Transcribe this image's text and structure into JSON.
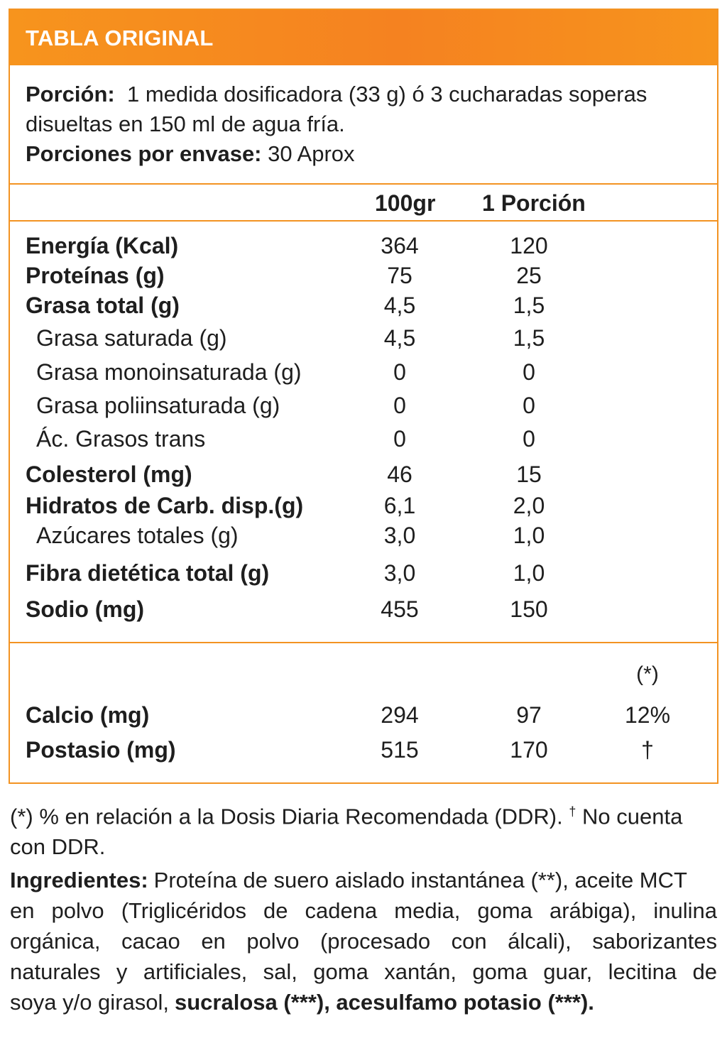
{
  "header": {
    "title": "TABLA ORIGINAL"
  },
  "serving": {
    "portion_label": "Porción:",
    "portion_text_1": "1 medida dosificadora (33 g) ó 3 cucharadas soperas",
    "portion_text_2": "disueltas en 150 ml de agua fría.",
    "per_container_label": "Porciones por envase:",
    "per_container_value": "30 Aprox"
  },
  "columns": {
    "per_100": "100gr",
    "per_portion": "1 Porción",
    "pct": "(*)"
  },
  "nutrients": [
    {
      "label": "Energía (Kcal)",
      "per_100": "364",
      "per_portion": "120"
    },
    {
      "label": "Proteínas (g)",
      "per_100": "75",
      "per_portion": "25"
    },
    {
      "label": "Grasa total (g)",
      "per_100": "4,5",
      "per_portion": "1,5"
    },
    {
      "label": "Grasa saturada (g)",
      "per_100": "4,5",
      "per_portion": "1,5"
    },
    {
      "label": "Grasa monoinsaturada (g)",
      "per_100": "0",
      "per_portion": "0"
    },
    {
      "label": "Grasa poliinsaturada (g)",
      "per_100": "0",
      "per_portion": "0"
    },
    {
      "label": "Ác. Grasos trans",
      "per_100": "0",
      "per_portion": "0"
    },
    {
      "label": "Colesterol (mg)",
      "per_100": "46",
      "per_portion": "15"
    },
    {
      "label": "Hidratos de Carb. disp.(g)",
      "per_100": "6,1",
      "per_portion": "2,0"
    },
    {
      "label": "Azúcares totales (g)",
      "per_100": "3,0",
      "per_portion": "1,0"
    },
    {
      "label": "Fibra dietética total (g)",
      "per_100": "3,0",
      "per_portion": "1,0"
    },
    {
      "label": "Sodio (mg)",
      "per_100": "455",
      "per_portion": "150"
    }
  ],
  "minerals": [
    {
      "label": "Calcio (mg)",
      "per_100": "294",
      "per_portion": "97",
      "pct": "12%"
    },
    {
      "label": "Postasio (mg)",
      "per_100": "515",
      "per_portion": "170",
      "pct": "†"
    }
  ],
  "footnote": {
    "line1": "(*) % en relación a la Dosis Diaria Recomendada (DDR).",
    "dagger": "†",
    "line1_end": "No cuenta",
    "line2": "con DDR."
  },
  "ingredients": {
    "label": "Ingredientes:",
    "line1": "Proteína de suero aislado instantánea (**), aceite MCT",
    "line2": "en polvo (Triglicéridos de cadena media, goma arábiga), inulina",
    "line3": "orgánica, cacao en polvo (procesado con álcali), saborizantes",
    "line4": "naturales y artificiales, sal, goma xantán, goma guar, lecitina de",
    "line5_normal": "soya y/o girasol,",
    "line5_bold": "sucralosa (***), acesulfamo potasio (***)."
  },
  "colors": {
    "accent": "#f58220",
    "border": "#f39322",
    "text": "#1e1e1e"
  }
}
